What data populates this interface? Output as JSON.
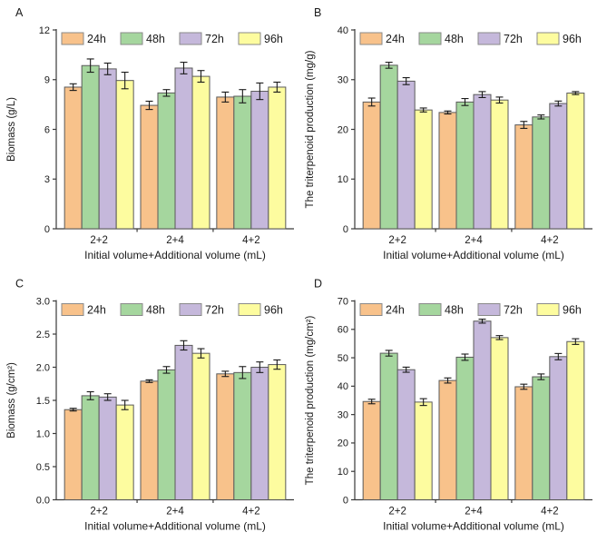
{
  "figure": {
    "background": "#ffffff",
    "xlabel": "Initial volume+Additional volume (mL)",
    "categories": [
      "2+2",
      "2+4",
      "4+2"
    ],
    "legend_labels": [
      "24h",
      "48h",
      "72h",
      "96h"
    ],
    "series_colors": [
      "#F8C28B",
      "#A5D69E",
      "#C5B8DB",
      "#FDFC9F"
    ],
    "bar_stroke_color": "#5a5a5a",
    "legend_swatch_stroke_color": "#8a8a8a",
    "error_bar_color": "#1a1a1a",
    "axis_color": "#3a3a3a",
    "text_color": "#1a1a1a"
  },
  "chart_data": [
    {
      "panel": "A",
      "type": "bar",
      "title": "",
      "ylabel": "Biomass (g/L)",
      "xlabel": "Initial volume+Additional volume (mL)",
      "ylim": [
        0,
        12
      ],
      "ytick_values": [
        0,
        3,
        6,
        9,
        12
      ],
      "ytick_labels": [
        "0",
        "3",
        "6",
        "9",
        "12"
      ],
      "categories": [
        "2+2",
        "2+4",
        "4+2"
      ],
      "grid": false,
      "legend_position": "top-inside",
      "series": [
        {
          "name": "24h",
          "values": [
            8.55,
            7.45,
            7.95
          ],
          "errors": [
            0.2,
            0.25,
            0.3
          ]
        },
        {
          "name": "48h",
          "values": [
            9.85,
            8.2,
            8.0
          ],
          "errors": [
            0.4,
            0.2,
            0.4
          ]
        },
        {
          "name": "72h",
          "values": [
            9.65,
            9.7,
            8.3
          ],
          "errors": [
            0.35,
            0.35,
            0.5
          ]
        },
        {
          "name": "96h",
          "values": [
            8.95,
            9.2,
            8.55
          ],
          "errors": [
            0.5,
            0.35,
            0.3
          ]
        }
      ]
    },
    {
      "panel": "B",
      "type": "bar",
      "title": "",
      "ylabel": "The triterpenoid production (mg/g)",
      "xlabel": "Initial volume+Additional volume (mL)",
      "ylim": [
        0,
        40
      ],
      "ytick_values": [
        0,
        10,
        20,
        30,
        40
      ],
      "ytick_labels": [
        "0",
        "10",
        "20",
        "30",
        "40"
      ],
      "categories": [
        "2+2",
        "2+4",
        "4+2"
      ],
      "grid": false,
      "legend_position": "top-inside",
      "series": [
        {
          "name": "24h",
          "values": [
            25.5,
            23.4,
            20.9
          ],
          "errors": [
            0.8,
            0.3,
            0.7
          ]
        },
        {
          "name": "48h",
          "values": [
            32.9,
            25.5,
            22.5
          ],
          "errors": [
            0.6,
            0.7,
            0.4
          ]
        },
        {
          "name": "72h",
          "values": [
            29.7,
            27.0,
            25.2
          ],
          "errors": [
            0.7,
            0.6,
            0.5
          ]
        },
        {
          "name": "96h",
          "values": [
            23.9,
            25.9,
            27.3
          ],
          "errors": [
            0.4,
            0.6,
            0.3
          ]
        }
      ]
    },
    {
      "panel": "C",
      "type": "bar",
      "title": "",
      "ylabel": "Biomass (g/cm²)",
      "xlabel": "Initial volume+Additional volume (mL)",
      "ylim": [
        0,
        3.0
      ],
      "ytick_values": [
        0,
        0.5,
        1.0,
        1.5,
        2.0,
        2.5,
        3.0
      ],
      "ytick_labels": [
        "0.0",
        "0.5",
        "1.0",
        "1.5",
        "2.0",
        "2.5",
        "3.0"
      ],
      "categories": [
        "2+2",
        "2+4",
        "4+2"
      ],
      "grid": false,
      "legend_position": "top-inside",
      "series": [
        {
          "name": "24h",
          "values": [
            1.36,
            1.79,
            1.9
          ],
          "errors": [
            0.02,
            0.02,
            0.04
          ]
        },
        {
          "name": "48h",
          "values": [
            1.57,
            1.96,
            1.92
          ],
          "errors": [
            0.06,
            0.05,
            0.09
          ]
        },
        {
          "name": "72h",
          "values": [
            1.55,
            2.33,
            2.0
          ],
          "errors": [
            0.05,
            0.07,
            0.08
          ]
        },
        {
          "name": "96h",
          "values": [
            1.43,
            2.21,
            2.04
          ],
          "errors": [
            0.07,
            0.07,
            0.07
          ]
        }
      ]
    },
    {
      "panel": "D",
      "type": "bar",
      "title": "",
      "ylabel": "The triterpenoid production (mg/cm²)",
      "xlabel": "Initial volume+Additional volume (mL)",
      "ylim": [
        0,
        70
      ],
      "ytick_values": [
        0,
        10,
        20,
        30,
        40,
        50,
        60,
        70
      ],
      "ytick_labels": [
        "0",
        "10",
        "20",
        "30",
        "40",
        "50",
        "60",
        "70"
      ],
      "categories": [
        "2+2",
        "2+4",
        "4+2"
      ],
      "grid": false,
      "legend_position": "top-inside",
      "series": [
        {
          "name": "24h",
          "values": [
            34.6,
            42.0,
            39.8
          ],
          "errors": [
            0.8,
            0.9,
            0.9
          ]
        },
        {
          "name": "48h",
          "values": [
            51.6,
            50.2,
            43.3
          ],
          "errors": [
            1.0,
            1.1,
            1.0
          ]
        },
        {
          "name": "72h",
          "values": [
            45.8,
            62.9,
            50.4
          ],
          "errors": [
            0.9,
            0.7,
            1.1
          ]
        },
        {
          "name": "96h",
          "values": [
            34.4,
            57.1,
            55.7
          ],
          "errors": [
            1.2,
            0.7,
            1.0
          ]
        }
      ]
    }
  ]
}
